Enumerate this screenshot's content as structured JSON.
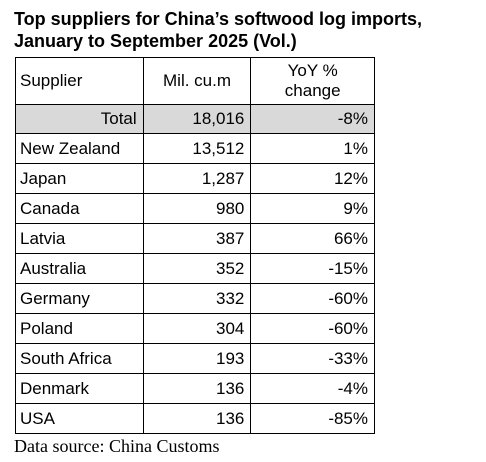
{
  "title_line1": "Top suppliers for China’s softwood log imports,",
  "title_line2": "January to September 2025 (Vol.)",
  "chart_data": {
    "type": "table",
    "columns": [
      "Supplier",
      "Mil. cu.m",
      "YoY % change"
    ],
    "header_yoy_line1": "YoY %",
    "header_yoy_line2": "change",
    "total": {
      "label": "Total",
      "volume": "18,016",
      "yoy": "-8%"
    },
    "rows": [
      {
        "supplier": "New Zealand",
        "volume": "13,512",
        "yoy": "1%"
      },
      {
        "supplier": "Japan",
        "volume": "1,287",
        "yoy": "12%"
      },
      {
        "supplier": "Canada",
        "volume": "980",
        "yoy": "9%"
      },
      {
        "supplier": "Latvia",
        "volume": "387",
        "yoy": "66%"
      },
      {
        "supplier": "Australia",
        "volume": "352",
        "yoy": "-15%"
      },
      {
        "supplier": "Germany",
        "volume": "332",
        "yoy": "-60%"
      },
      {
        "supplier": "Poland",
        "volume": "304",
        "yoy": "-60%"
      },
      {
        "supplier": "South Africa",
        "volume": "193",
        "yoy": "-33%"
      },
      {
        "supplier": "Denmark",
        "volume": "136",
        "yoy": "-4%"
      },
      {
        "supplier": "USA",
        "volume": "136",
        "yoy": "-85%"
      }
    ],
    "total_row_color": "#d9d9d9"
  },
  "source": "Data source: China Customs"
}
